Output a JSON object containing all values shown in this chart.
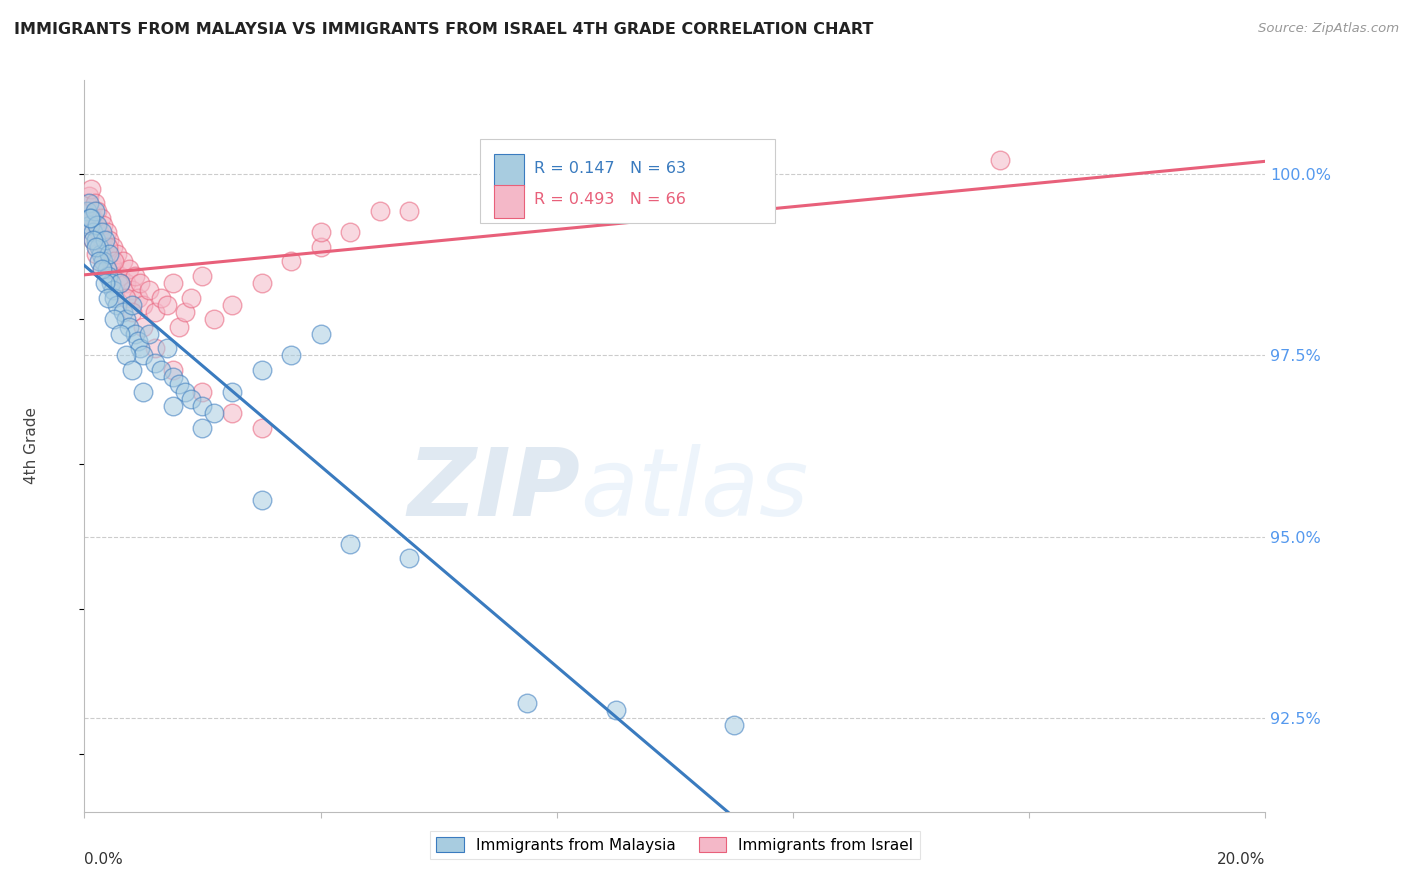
{
  "title": "IMMIGRANTS FROM MALAYSIA VS IMMIGRANTS FROM ISRAEL 4TH GRADE CORRELATION CHART",
  "source_text": "Source: ZipAtlas.com",
  "ylabel": "4th Grade",
  "y_ticks": [
    92.5,
    95.0,
    97.5,
    100.0
  ],
  "y_tick_labels": [
    "92.5%",
    "95.0%",
    "97.5%",
    "100.0%"
  ],
  "x_range": [
    0.0,
    20.0
  ],
  "y_range": [
    91.2,
    101.3
  ],
  "watermark_zip": "ZIP",
  "watermark_atlas": "atlas",
  "legend_malaysia": "Immigrants from Malaysia",
  "legend_israel": "Immigrants from Israel",
  "r_malaysia": 0.147,
  "n_malaysia": 63,
  "r_israel": 0.493,
  "n_israel": 66,
  "color_malaysia": "#a8cce0",
  "color_israel": "#f4b8c8",
  "line_color_malaysia": "#3a7bbf",
  "line_color_israel": "#e8607a",
  "malaysia_x": [
    0.05,
    0.08,
    0.1,
    0.12,
    0.15,
    0.18,
    0.2,
    0.22,
    0.25,
    0.28,
    0.3,
    0.32,
    0.35,
    0.38,
    0.4,
    0.42,
    0.45,
    0.48,
    0.5,
    0.55,
    0.6,
    0.65,
    0.7,
    0.75,
    0.8,
    0.85,
    0.9,
    0.95,
    1.0,
    1.1,
    1.2,
    1.3,
    1.4,
    1.5,
    1.6,
    1.7,
    1.8,
    2.0,
    2.2,
    2.5,
    3.0,
    3.5,
    4.0,
    0.1,
    0.15,
    0.2,
    0.25,
    0.3,
    0.35,
    0.4,
    0.5,
    0.6,
    0.7,
    0.8,
    1.0,
    1.5,
    2.0,
    3.0,
    4.5,
    5.5,
    7.5,
    9.0,
    11.0
  ],
  "malaysia_y": [
    99.5,
    99.6,
    99.3,
    99.4,
    99.2,
    99.5,
    99.1,
    99.3,
    99.0,
    98.9,
    99.2,
    98.8,
    99.1,
    98.7,
    98.6,
    98.9,
    98.5,
    98.4,
    98.3,
    98.2,
    98.5,
    98.1,
    98.0,
    97.9,
    98.2,
    97.8,
    97.7,
    97.6,
    97.5,
    97.8,
    97.4,
    97.3,
    97.6,
    97.2,
    97.1,
    97.0,
    96.9,
    96.8,
    96.7,
    97.0,
    97.3,
    97.5,
    97.8,
    99.4,
    99.1,
    99.0,
    98.8,
    98.7,
    98.5,
    98.3,
    98.0,
    97.8,
    97.5,
    97.3,
    97.0,
    96.8,
    96.5,
    95.5,
    94.9,
    94.7,
    92.7,
    92.6,
    92.4
  ],
  "israel_x": [
    0.05,
    0.08,
    0.1,
    0.12,
    0.15,
    0.18,
    0.2,
    0.22,
    0.25,
    0.28,
    0.3,
    0.32,
    0.35,
    0.38,
    0.4,
    0.42,
    0.45,
    0.48,
    0.5,
    0.55,
    0.6,
    0.65,
    0.7,
    0.75,
    0.8,
    0.85,
    0.9,
    0.95,
    1.0,
    1.1,
    1.2,
    1.3,
    1.4,
    1.5,
    1.6,
    1.7,
    1.8,
    2.0,
    2.2,
    2.5,
    3.0,
    3.5,
    4.0,
    4.5,
    5.0,
    0.1,
    0.15,
    0.2,
    0.3,
    0.4,
    0.5,
    0.6,
    0.7,
    0.8,
    1.0,
    1.2,
    1.5,
    2.0,
    2.5,
    3.0,
    4.0,
    5.5,
    7.0,
    8.0,
    10.0,
    15.5
  ],
  "israel_y": [
    99.6,
    99.7,
    99.5,
    99.8,
    99.4,
    99.6,
    99.3,
    99.5,
    99.2,
    99.4,
    99.1,
    99.3,
    99.0,
    99.2,
    98.9,
    99.1,
    98.8,
    99.0,
    98.7,
    98.9,
    98.6,
    98.8,
    98.5,
    98.7,
    98.4,
    98.6,
    98.3,
    98.5,
    98.2,
    98.4,
    98.1,
    98.3,
    98.2,
    98.5,
    97.9,
    98.1,
    98.3,
    98.6,
    98.0,
    98.2,
    98.5,
    98.8,
    99.0,
    99.2,
    99.5,
    99.3,
    99.1,
    98.9,
    98.7,
    99.0,
    98.8,
    98.5,
    98.3,
    98.1,
    97.9,
    97.6,
    97.3,
    97.0,
    96.7,
    96.5,
    99.2,
    99.5,
    99.7,
    100.0,
    100.1,
    100.2
  ]
}
